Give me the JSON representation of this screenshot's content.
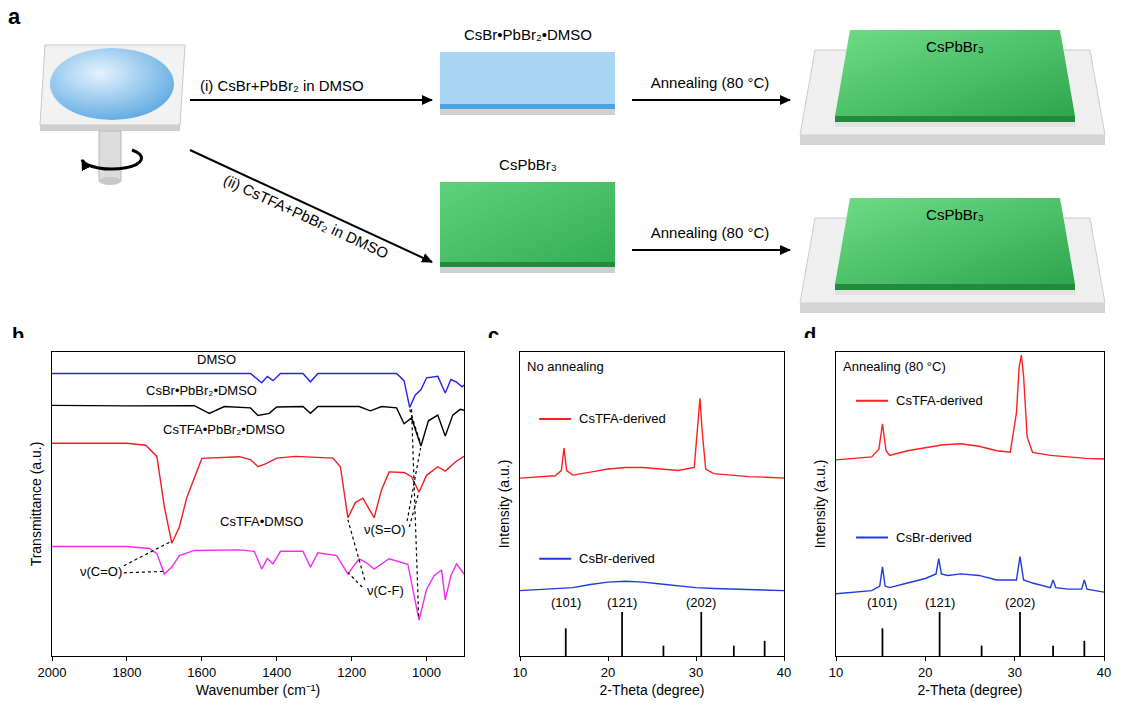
{
  "diagram": {
    "panel": "a",
    "routes": [
      {
        "reagents": "(i) CsBr+PbBr₂ in DMSO",
        "intermediate": "CsBr•PbBr₂•DMSO",
        "color": "#a9d6f3",
        "annealing": "Annealing (80 °C)",
        "product": "CsPbBr₃"
      },
      {
        "reagents": "(ii) CsTFA+PbBr₂ in DMSO",
        "intermediate": "CsPbBr₃",
        "color": "#3fbf63",
        "annealing": "Annealing (80 °C)",
        "product": "CsPbBr₃"
      }
    ]
  },
  "chart_data": [
    {
      "panel": "b",
      "type": "line",
      "x_label": "Wavenumber (cm⁻¹)",
      "y_label": "Transmittance (a.u.)",
      "xlim": [
        2000,
        900
      ],
      "xticks": [
        2000,
        1800,
        1600,
        1400,
        1200,
        1000
      ],
      "ylim": [
        0,
        106
      ],
      "tick_labels": "x",
      "series": [
        {
          "name": "DMSO",
          "color": "#2424e6",
          "label": [
            1560,
            103.5
          ],
          "x": [
            2000,
            1700,
            1600,
            1470,
            1440,
            1425,
            1410,
            1390,
            1330,
            1310,
            1290,
            1080,
            1060,
            1045,
            1030,
            1015,
            1000,
            970,
            950,
            935,
            920,
            905,
            900
          ],
          "values": [
            98.5,
            98.5,
            98.4,
            98.5,
            95.3,
            97.5,
            96,
            98.5,
            98.5,
            95.6,
            98.5,
            98.5,
            96,
            86.7,
            91,
            92.8,
            97,
            97.5,
            91.7,
            96.4,
            95.5,
            93.9,
            94.5
          ]
        },
        {
          "name": "CsBr•PbBr₂•DMSO",
          "color": "#000000",
          "label": [
            1600,
            92.5
          ],
          "x": [
            2000,
            1800,
            1620,
            1580,
            1540,
            1470,
            1450,
            1420,
            1400,
            1330,
            1310,
            1290,
            1180,
            1150,
            1120,
            1080,
            1060,
            1040,
            1015,
            995,
            970,
            950,
            930,
            910,
            900
          ],
          "values": [
            87.4,
            87.2,
            87.3,
            84.6,
            87,
            86.5,
            83.9,
            84.6,
            86.8,
            87,
            84.6,
            87,
            87,
            85.5,
            87,
            86.5,
            81,
            83,
            73.2,
            82,
            84,
            76.7,
            84,
            86,
            85.7
          ]
        },
        {
          "name": "CsTFA•PbBr₂•DMSO",
          "color": "#ee1c24",
          "label": [
            1540,
            79
          ],
          "x": [
            2000,
            1800,
            1750,
            1720,
            1700,
            1680,
            1660,
            1640,
            1600,
            1500,
            1470,
            1450,
            1430,
            1400,
            1350,
            1250,
            1230,
            1210,
            1190,
            1170,
            1140,
            1120,
            1100,
            1060,
            1040,
            1020,
            1000,
            970,
            950,
            920,
            900
          ],
          "values": [
            74.2,
            74.2,
            73.5,
            69.6,
            52,
            39.3,
            45,
            55.3,
            68.9,
            69.5,
            68.5,
            66,
            67,
            69,
            69.6,
            69,
            66,
            48.2,
            53.5,
            55,
            48.2,
            58,
            64.2,
            64,
            62.5,
            57.1,
            63,
            66,
            64.5,
            68,
            69.6
          ]
        },
        {
          "name": "CsTFA•DMSO",
          "color": "#f02cf0",
          "label": [
            1440,
            47
          ],
          "x": [
            2000,
            1800,
            1740,
            1720,
            1700,
            1680,
            1660,
            1620,
            1500,
            1460,
            1440,
            1425,
            1410,
            1390,
            1330,
            1310,
            1290,
            1240,
            1210,
            1180,
            1160,
            1140,
            1100,
            1050,
            1020,
            1000,
            980,
            960,
            950,
            935,
            920,
            900
          ],
          "values": [
            38.2,
            38.2,
            37.5,
            35.7,
            28.6,
            31,
            35,
            36.8,
            37,
            36.5,
            30.3,
            34,
            32.1,
            36.5,
            36.5,
            31,
            36,
            35,
            28.6,
            33.9,
            32.5,
            30.3,
            33.9,
            32,
            12.5,
            23.2,
            28,
            30,
            19.6,
            28,
            32.1,
            28.6
          ]
        }
      ],
      "annotations": [
        {
          "text": "ν(C=O)",
          "x": 1870,
          "y": 29.6,
          "arrows": [
            [
              1808,
              31.5,
              1681,
              40
            ],
            [
              1808,
              29,
              1703,
              29.5
            ]
          ]
        },
        {
          "text": "ν(C-F)",
          "x": 1110,
          "y": 23,
          "arrows": [
            [
              1165,
              26.5,
              1210,
              47.5
            ],
            [
              1172,
              24,
              1209,
              29
            ]
          ]
        },
        {
          "text": "ν(S=O)",
          "x": 1110,
          "y": 44,
          "arrows": [
            [
              1052,
              47,
              1016,
              72.5
            ],
            [
              1046,
              45,
              1022,
              56.5
            ],
            [
              1045,
              86,
              1017,
              74.5
            ],
            [
              1040,
              86,
              1021,
              13.5
            ]
          ]
        }
      ]
    },
    {
      "panel": "c",
      "type": "line",
      "title": "No annealing",
      "x_label": "2-Theta (degree)",
      "y_label": "Intensity (a.u.)",
      "xlim": [
        10,
        40
      ],
      "xticks": [
        10,
        20,
        30,
        40
      ],
      "ylim": [
        0,
        100
      ],
      "tick_labels": "x",
      "series": [
        {
          "name": "CsTFA-derived",
          "color": "#ff1f1f",
          "label": [
            16.5,
            78
          ],
          "x": [
            10,
            12,
            14,
            14.7,
            15,
            15.3,
            16,
            18,
            20,
            22,
            24,
            26,
            28,
            29.8,
            30.2,
            30.45,
            30.7,
            31.1,
            32,
            34,
            36,
            38,
            40
          ],
          "values": [
            58.5,
            59,
            59.3,
            61,
            68.4,
            61,
            59.5,
            60.5,
            61.5,
            62,
            62,
            61.5,
            61,
            62,
            75,
            84.8,
            74,
            61.5,
            60,
            59.5,
            59,
            58.8,
            58.5
          ]
        },
        {
          "name": "CsBr-derived",
          "color": "#1f3bdb",
          "label": [
            16.5,
            32
          ],
          "x": [
            10,
            12,
            14,
            16,
            18,
            20,
            22,
            24,
            26,
            28,
            30,
            32,
            34,
            36,
            38,
            40
          ],
          "values": [
            21.5,
            21.8,
            22,
            22.5,
            23.5,
            24.3,
            24.6,
            24.3,
            23.7,
            23,
            22.5,
            22.2,
            22,
            21.8,
            21.6,
            21.5
          ]
        }
      ],
      "reference": {
        "type": "bar",
        "color": "#000000",
        "x": [
          15.2,
          21.6,
          26.3,
          30.6,
          34.3,
          37.8
        ],
        "values": [
          9.1,
          14.5,
          3.4,
          14.5,
          3.4,
          5
        ]
      },
      "annotations": [
        {
          "text": "(101)",
          "x": 15.2,
          "y": 17.5
        },
        {
          "text": "(121)",
          "x": 21.6,
          "y": 17.5
        },
        {
          "text": "(202)",
          "x": 30.6,
          "y": 17.5
        }
      ]
    },
    {
      "panel": "d",
      "type": "line",
      "title": "Annealing (80 °C)",
      "x_label": "2-Theta (degree)",
      "y_label": "Intensity (a.u.)",
      "xlim": [
        10,
        40
      ],
      "xticks": [
        10,
        20,
        30,
        40
      ],
      "ylim": [
        0,
        100
      ],
      "tick_labels": "x",
      "series": [
        {
          "name": "CsTFA-derived",
          "color": "#ff1f1f",
          "label": [
            16.5,
            84
          ],
          "x": [
            10,
            12,
            14,
            14.8,
            15.2,
            15.6,
            16,
            18,
            20,
            22,
            24,
            26,
            28,
            29.5,
            30.2,
            30.5,
            30.75,
            31,
            31.4,
            32,
            34,
            36,
            38,
            40
          ],
          "values": [
            64.5,
            65,
            65.5,
            68,
            76.4,
            67.5,
            66,
            67.5,
            68.5,
            69.5,
            69.8,
            69,
            67.5,
            67,
            80,
            95,
            99,
            92,
            72,
            67,
            66,
            65.5,
            65,
            64.8
          ]
        },
        {
          "name": "CsBr-derived",
          "color": "#1f3bdb",
          "label": [
            16.5,
            39
          ],
          "x": [
            10,
            12,
            14,
            14.9,
            15.2,
            15.5,
            16,
            18,
            20,
            21.2,
            21.5,
            21.8,
            22.5,
            24,
            26,
            28,
            30.2,
            30.6,
            31,
            32,
            34,
            34.3,
            34.6,
            36,
            37.5,
            37.8,
            38.1,
            40
          ],
          "values": [
            20.5,
            21,
            21.5,
            23,
            29.3,
            23,
            22.5,
            24,
            25.5,
            27,
            32,
            27,
            26.5,
            27,
            26.5,
            25,
            25,
            32.7,
            25,
            24,
            22.5,
            25,
            22.5,
            22,
            22,
            25,
            22,
            21
          ]
        }
      ],
      "reference": {
        "type": "bar",
        "color": "#000000",
        "x": [
          15.2,
          21.6,
          26.3,
          30.6,
          34.3,
          37.8
        ],
        "values": [
          9.1,
          14.5,
          3.4,
          14.5,
          3.4,
          5
        ]
      },
      "annotations": [
        {
          "text": "(101)",
          "x": 15.2,
          "y": 17.5
        },
        {
          "text": "(121)",
          "x": 21.6,
          "y": 17.5
        },
        {
          "text": "(202)",
          "x": 30.6,
          "y": 17.5
        }
      ]
    }
  ]
}
